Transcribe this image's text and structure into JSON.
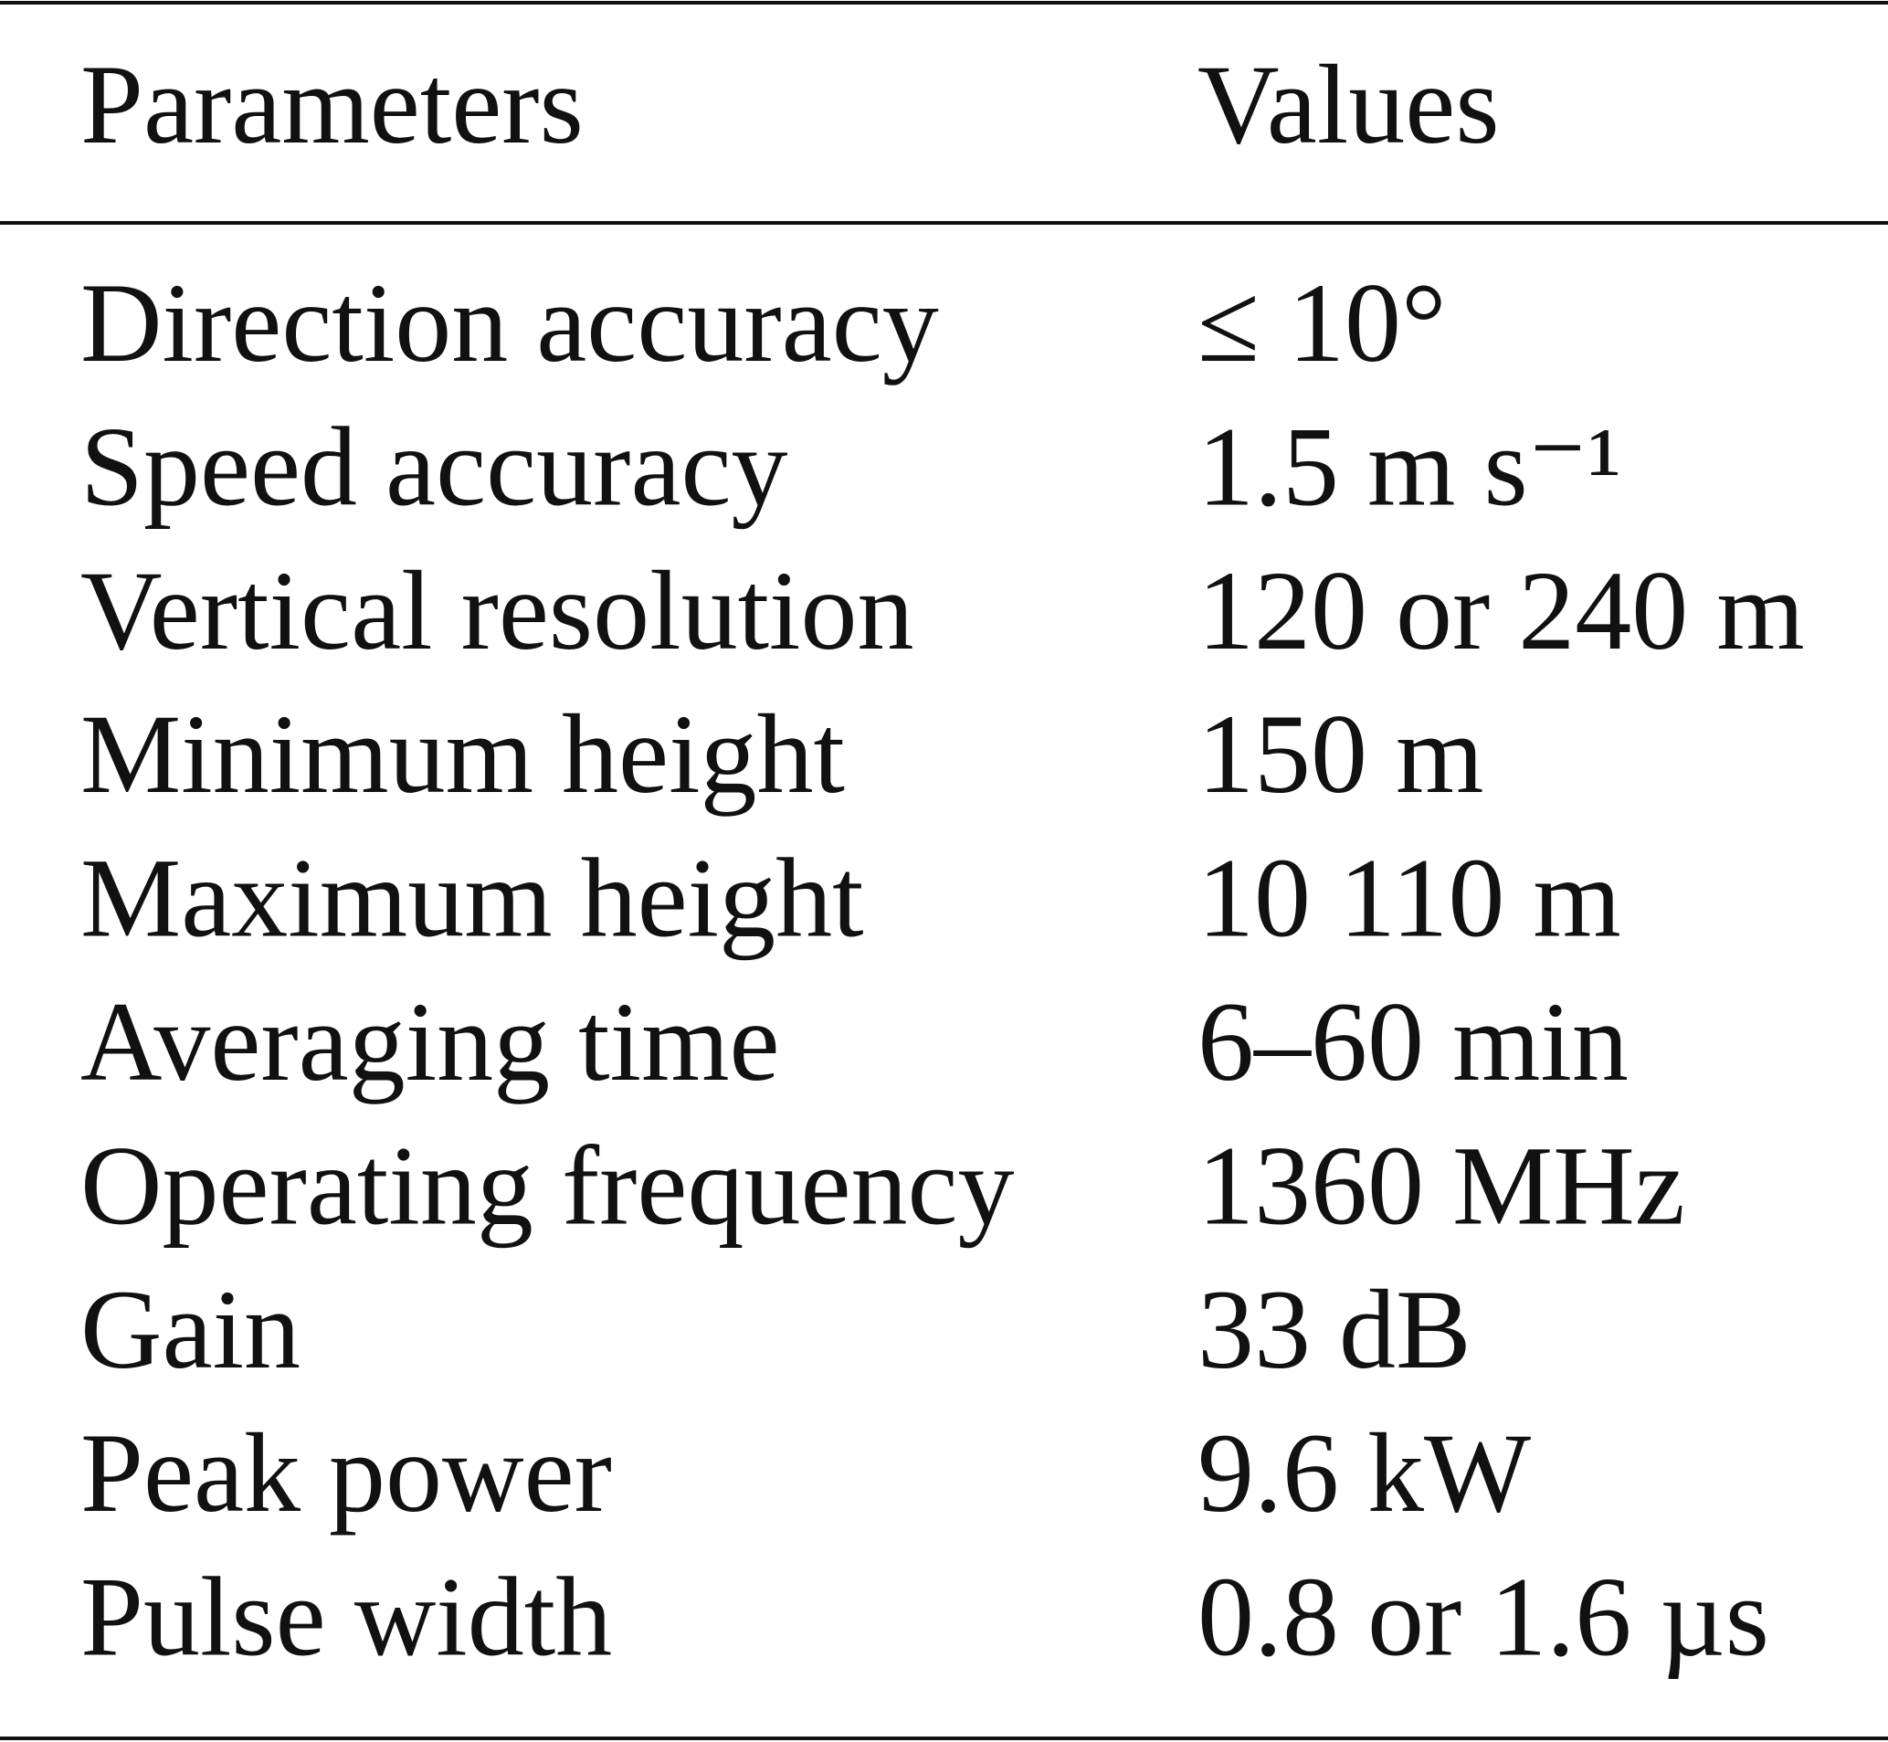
{
  "table": {
    "header": [
      "Parameters",
      "Values"
    ],
    "rows": [
      [
        "Direction accuracy",
        "≤ 10°"
      ],
      [
        "Speed accuracy",
        "1.5 m s⁻¹"
      ],
      [
        "Vertical resolution",
        "120 or 240 m"
      ],
      [
        "Minimum height",
        "150 m"
      ],
      [
        "Maximum height",
        "10 110 m"
      ],
      [
        "Averaging time",
        "6–60 min"
      ],
      [
        "Operating frequency",
        "1360 MHz"
      ],
      [
        "Gain",
        "33 dB"
      ],
      [
        "Peak power",
        "9.6 kW"
      ],
      [
        "Pulse width",
        "0.8 or 1.6 µs"
      ]
    ]
  }
}
